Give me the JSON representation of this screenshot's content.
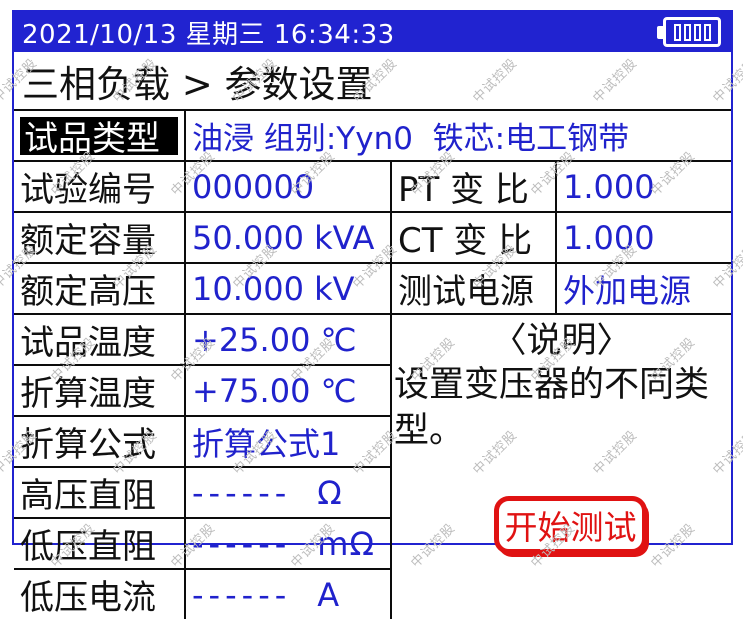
{
  "status_bar": {
    "datetime": "2021/10/13 星期三 16:34:33",
    "battery_level": "full"
  },
  "breadcrumb": "三相负载 > 参数设置",
  "table": {
    "type": {
      "label": "试品类型",
      "value": "油浸 组别:Yyn0  铁芯:电工钢带"
    },
    "rows": [
      {
        "label": "试验编号",
        "value": "000000"
      },
      {
        "label": "额定容量",
        "value": "50.000 kVA"
      },
      {
        "label": "额定高压",
        "value": "10.000 kV"
      },
      {
        "label": "试品温度",
        "value": "+25.00 ℃"
      },
      {
        "label": "折算温度",
        "value": "+75.00 ℃"
      },
      {
        "label": "折算公式",
        "value": "折算公式1"
      },
      {
        "label": "高压直阻",
        "value": "------",
        "unit": "Ω"
      },
      {
        "label": "低压直阻",
        "value": "------",
        "unit": "mΩ"
      },
      {
        "label": "低压电流",
        "value": "------",
        "unit": "A"
      }
    ],
    "right_rows": [
      {
        "label": "PT 变 比",
        "value": "1.000"
      },
      {
        "label": "CT 变 比",
        "value": "1.000"
      },
      {
        "label": "测试电源",
        "value": "外加电源"
      }
    ],
    "note": {
      "title": "〈说明〉",
      "body": "设置变压器的不同类\n型。"
    },
    "start_button": "开始测试"
  },
  "watermark": "中试控股",
  "colors": {
    "accent_blue": "#2123d0",
    "value_blue": "#2022cc",
    "alert_red": "#e01212",
    "selected_bg": "#000000"
  }
}
